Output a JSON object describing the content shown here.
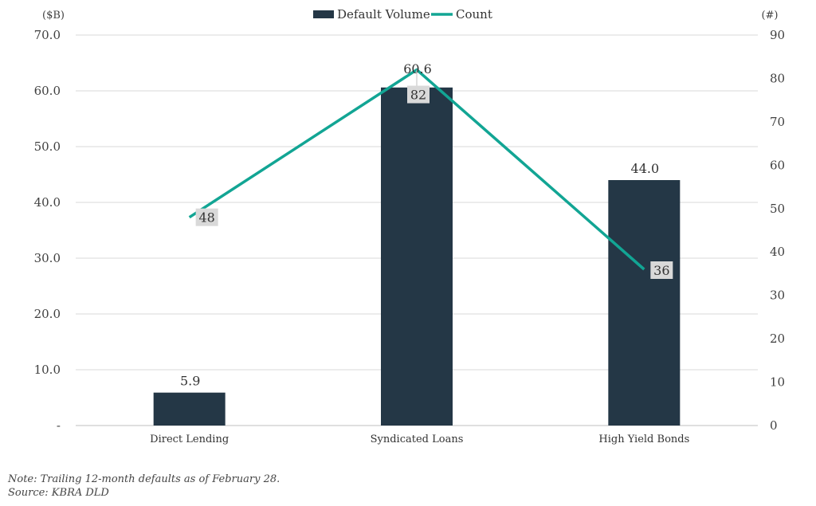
{
  "chart_data": {
    "type": "bar",
    "categories": [
      "Direct Lending",
      "Syndicated Loans",
      "High Yield Bonds"
    ],
    "series": [
      {
        "name": "Default Volume",
        "type": "bar",
        "axis": "left",
        "color": "#243746",
        "values": [
          5.9,
          60.6,
          44.0
        ],
        "labels": [
          "5.9",
          "60.6",
          "44.0"
        ]
      },
      {
        "name": "Count",
        "type": "line",
        "axis": "right",
        "color": "#12A594",
        "values": [
          48,
          82,
          36
        ],
        "labels": [
          "48",
          "82",
          "36"
        ]
      }
    ],
    "y_left": {
      "unit_label": "($B)",
      "ylim": [
        0,
        70
      ],
      "ticks": [
        0,
        10,
        20,
        30,
        40,
        50,
        60,
        70
      ],
      "tick_labels": [
        "-",
        "10.0",
        "20.0",
        "30.0",
        "40.0",
        "50.0",
        "60.0",
        "70.0"
      ]
    },
    "y_right": {
      "unit_label": "(#)",
      "ylim": [
        0,
        90
      ],
      "ticks": [
        0,
        10,
        20,
        30,
        40,
        50,
        60,
        70,
        80,
        90
      ],
      "tick_labels": [
        "0",
        "10",
        "20",
        "30",
        "40",
        "50",
        "60",
        "70",
        "80",
        "90"
      ]
    },
    "grid": true,
    "legend_position": "top"
  },
  "notes": {
    "note": "Note: Trailing 12-month defaults as of February 28.",
    "source": "Source: KBRA DLD"
  },
  "colors": {
    "bar": "#243746",
    "line": "#12A594",
    "grid": "#d9d9d9",
    "label_box": "#d9d9d9"
  }
}
